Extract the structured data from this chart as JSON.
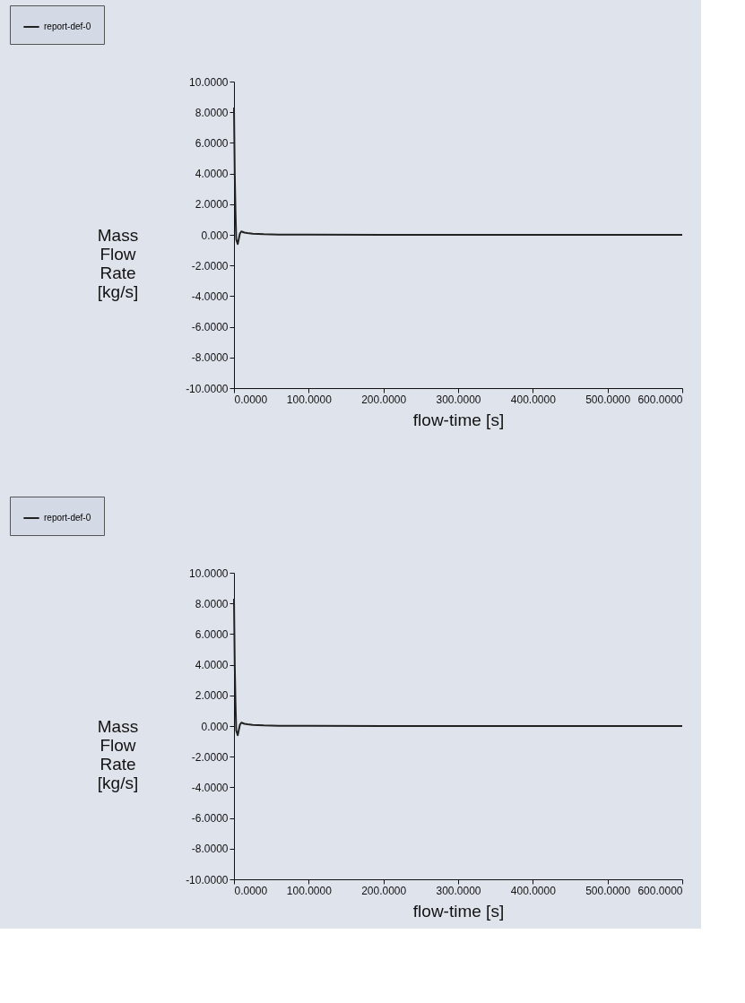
{
  "chart_data": [
    {
      "type": "line",
      "xlabel": "flow-time [s]",
      "ylabel": "Mass Flow Rate [kg/s]",
      "legend": "top left",
      "grid": false,
      "marker": "none",
      "line_style": "solid",
      "xlim": [
        0,
        600
      ],
      "ylim": [
        -10,
        10
      ],
      "xticks": [
        {
          "value": 0,
          "label": "0.0000"
        },
        {
          "value": 100,
          "label": "100.0000"
        },
        {
          "value": 200,
          "label": "200.0000"
        },
        {
          "value": 300,
          "label": "300.0000"
        },
        {
          "value": 400,
          "label": "400.0000"
        },
        {
          "value": 500,
          "label": "500.0000"
        },
        {
          "value": 600,
          "label": "600.0000"
        }
      ],
      "yticks": [
        {
          "value": -10,
          "label": "-10.0000"
        },
        {
          "value": -8,
          "label": "-8.0000"
        },
        {
          "value": -6,
          "label": "-6.0000"
        },
        {
          "value": -4,
          "label": "-4.0000"
        },
        {
          "value": -2,
          "label": "-2.0000"
        },
        {
          "value": 0,
          "label": "0.000"
        },
        {
          "value": 2,
          "label": "2.0000"
        },
        {
          "value": 4,
          "label": "4.0000"
        },
        {
          "value": 6,
          "label": "6.0000"
        },
        {
          "value": 8,
          "label": "8.0000"
        },
        {
          "value": 10,
          "label": "10.0000"
        }
      ],
      "x": [
        0,
        1,
        2,
        3,
        5,
        8,
        10,
        14,
        18,
        25,
        40,
        60,
        100,
        200,
        300,
        400,
        500,
        600
      ],
      "series": [
        {
          "name": "report-def-0",
          "color": "#222222",
          "values": [
            8.3,
            4.0,
            1.5,
            -0.3,
            -0.6,
            0.1,
            0.22,
            0.15,
            0.12,
            0.08,
            0.04,
            0.02,
            0.01,
            0,
            0,
            0,
            0,
            0
          ]
        }
      ]
    },
    {
      "type": "line",
      "xlabel": "flow-time [s]",
      "ylabel": "Mass Flow Rate [kg/s]",
      "legend": "top left",
      "grid": false,
      "marker": "none",
      "line_style": "solid",
      "xlim": [
        0,
        600
      ],
      "ylim": [
        -10,
        10
      ],
      "xticks": [
        {
          "value": 0,
          "label": "0.0000"
        },
        {
          "value": 100,
          "label": "100.0000"
        },
        {
          "value": 200,
          "label": "200.0000"
        },
        {
          "value": 300,
          "label": "300.0000"
        },
        {
          "value": 400,
          "label": "400.0000"
        },
        {
          "value": 500,
          "label": "500.0000"
        },
        {
          "value": 600,
          "label": "600.0000"
        }
      ],
      "yticks": [
        {
          "value": -10,
          "label": "-10.0000"
        },
        {
          "value": -8,
          "label": "-8.0000"
        },
        {
          "value": -6,
          "label": "-6.0000"
        },
        {
          "value": -4,
          "label": "-4.0000"
        },
        {
          "value": -2,
          "label": "-2.0000"
        },
        {
          "value": 0,
          "label": "0.000"
        },
        {
          "value": 2,
          "label": "2.0000"
        },
        {
          "value": 4,
          "label": "4.0000"
        },
        {
          "value": 6,
          "label": "6.0000"
        },
        {
          "value": 8,
          "label": "8.0000"
        },
        {
          "value": 10,
          "label": "10.0000"
        }
      ],
      "x": [
        0,
        1,
        2,
        3,
        5,
        8,
        10,
        14,
        18,
        25,
        40,
        60,
        100,
        200,
        300,
        400,
        500,
        600
      ],
      "series": [
        {
          "name": "report-def-0",
          "color": "#222222",
          "values": [
            8.3,
            4.0,
            1.5,
            -0.3,
            -0.6,
            0.1,
            0.22,
            0.15,
            0.12,
            0.08,
            0.04,
            0.02,
            0.01,
            0,
            0,
            0,
            0,
            0
          ]
        }
      ]
    }
  ]
}
